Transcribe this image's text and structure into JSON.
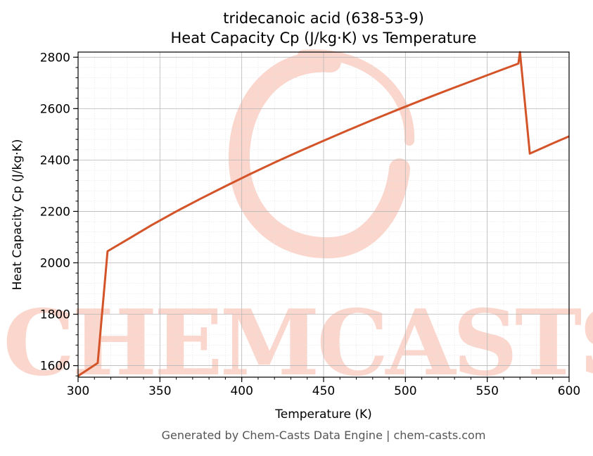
{
  "chart_data": {
    "type": "line",
    "title_line1": "tridecanoic acid (638-53-9)",
    "title_line2": "Heat Capacity Cp (J/kg·K) vs Temperature",
    "xlabel": "Temperature (K)",
    "ylabel": "Heat Capacity Cp (J/kg·K)",
    "xlim": [
      300,
      600
    ],
    "ylim": [
      1555,
      2820
    ],
    "x_ticks": [
      300,
      350,
      400,
      450,
      500,
      550,
      600
    ],
    "y_ticks": [
      1600,
      1800,
      2000,
      2200,
      2400,
      2600,
      2800
    ],
    "x_minor_step": 10,
    "y_minor_step": 40,
    "grid": true,
    "series": [
      {
        "color": "#d4542a",
        "x": [
          300,
          312,
          318,
          330,
          345,
          360,
          375,
          390,
          405,
          420,
          435,
          450,
          465,
          480,
          495,
          510,
          525,
          540,
          555,
          569,
          570,
          576,
          590,
          600
        ],
        "y": [
          1560,
          1610,
          2045,
          2090,
          2147,
          2200,
          2250,
          2298,
          2345,
          2390,
          2433,
          2475,
          2516,
          2556,
          2595,
          2633,
          2670,
          2706,
          2742,
          2775,
          2820,
          2425,
          2465,
          2492
        ]
      }
    ],
    "watermark_text": "CHEMCASTS",
    "watermark_color": "#fbd6cc"
  },
  "footer": {
    "text": "Generated by Chem-Casts Data Engine | chem-casts.com"
  }
}
